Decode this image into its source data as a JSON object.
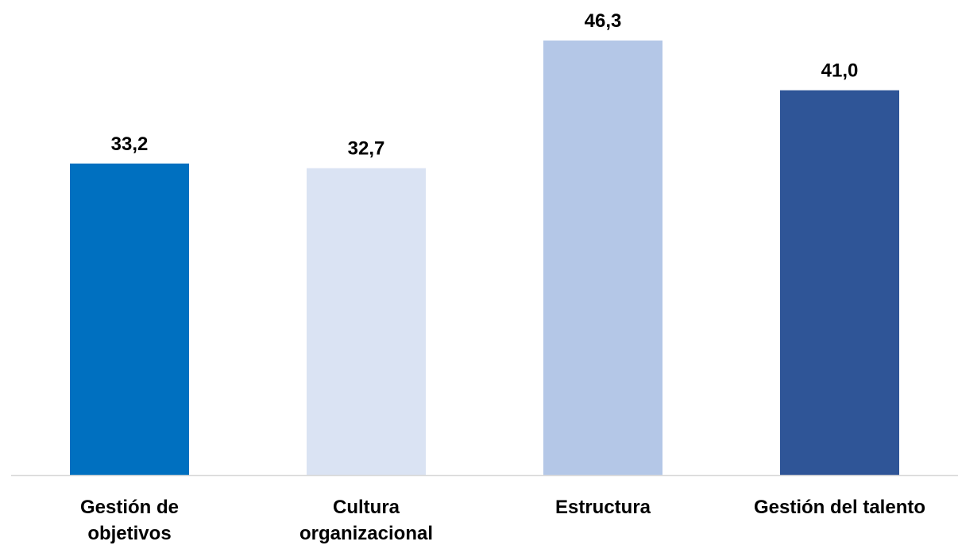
{
  "chart_data": {
    "type": "bar",
    "categories": [
      [
        "Gestión de",
        "objetivos"
      ],
      [
        "Cultura",
        "organizacional"
      ],
      [
        "Estructura"
      ],
      [
        "Gestión del talento"
      ]
    ],
    "values": [
      33.2,
      32.7,
      46.3,
      41.0
    ],
    "data_labels": [
      "33,2",
      "32,7",
      "46,3",
      "41,0"
    ],
    "bar_colors": [
      "#0070C0",
      "#DAE3F3",
      "#B4C7E7",
      "#2F5597"
    ],
    "axis_line_color": "#D9D9D9",
    "ylim": [
      0,
      50
    ],
    "grid": false,
    "legend": "none",
    "title": "",
    "xlabel": "",
    "ylabel": ""
  }
}
